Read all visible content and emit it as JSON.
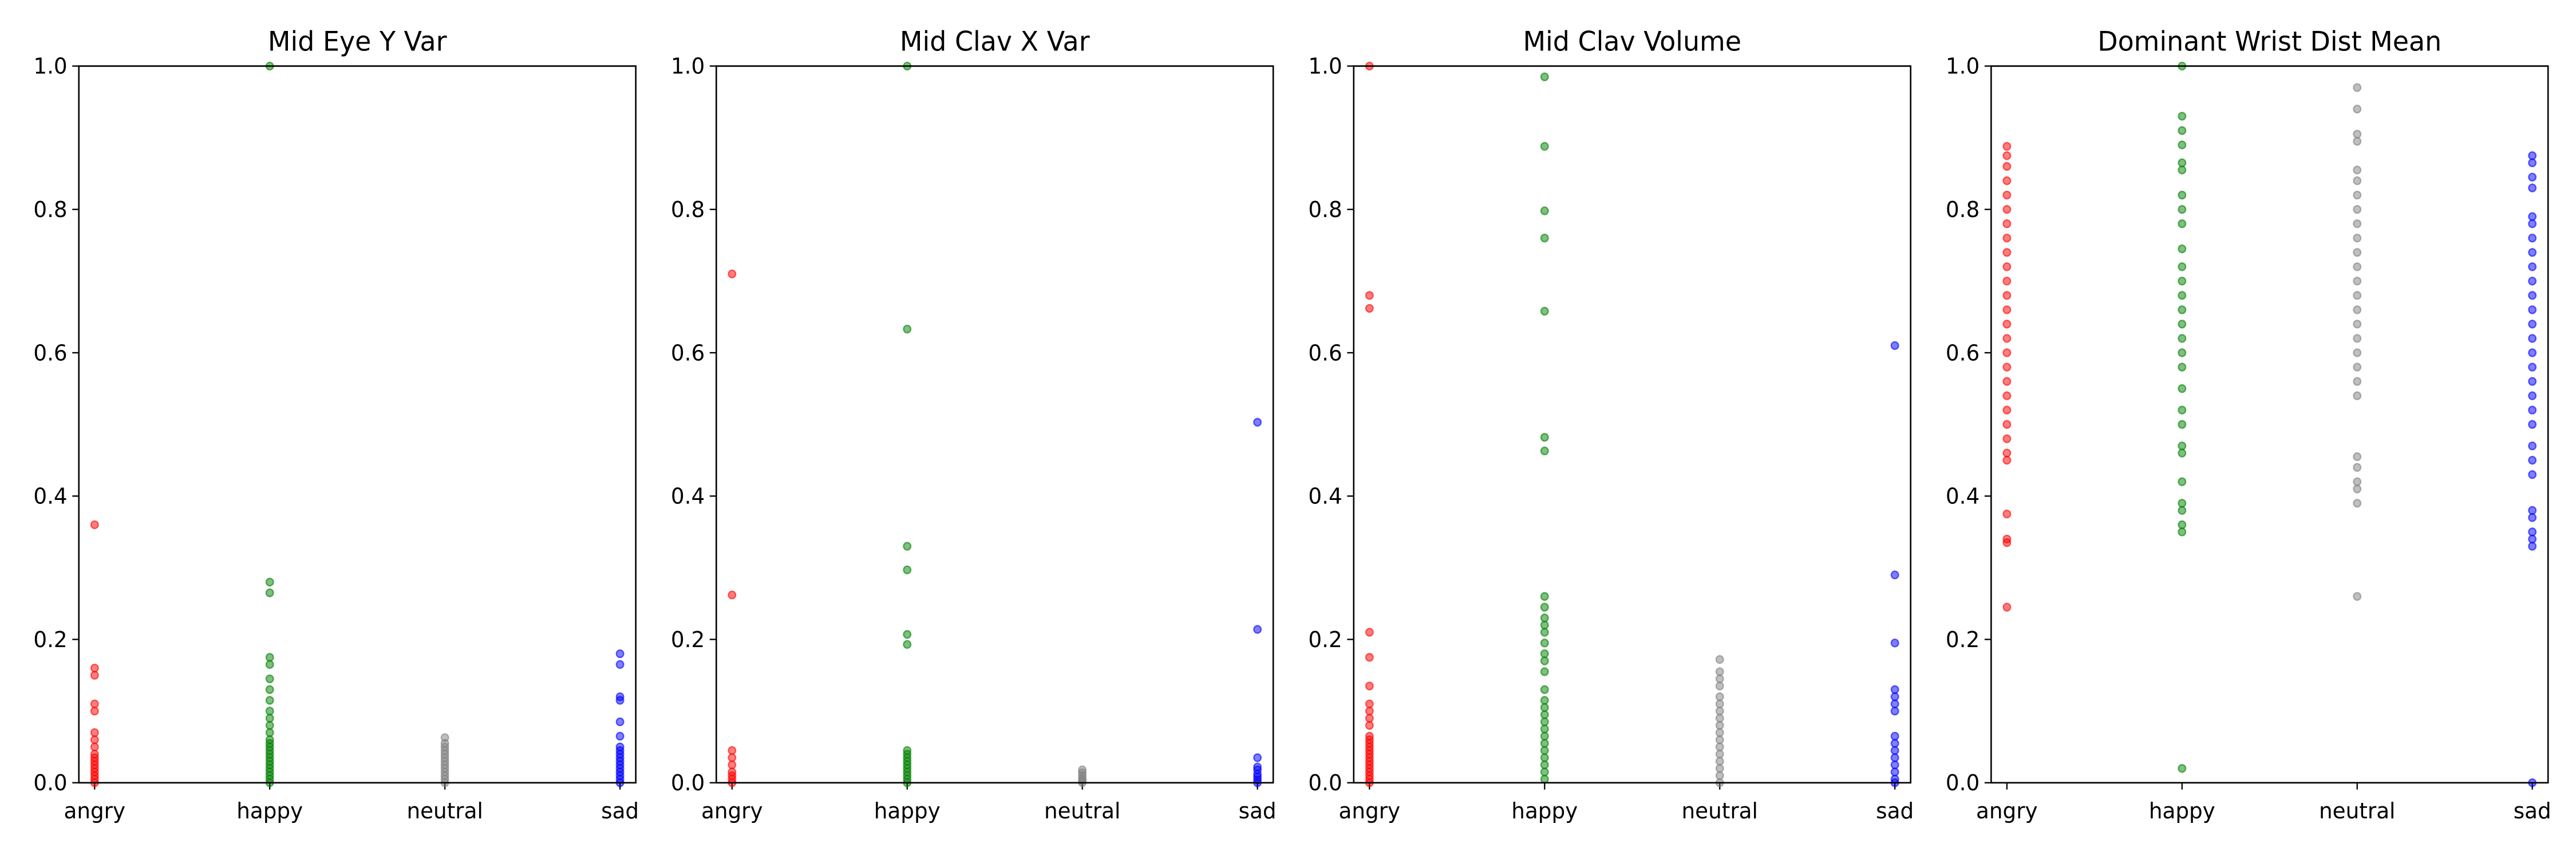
{
  "chart_data": [
    {
      "type": "strip",
      "title": "Mid Eye Y Var",
      "categories": [
        "angry",
        "happy",
        "neutral",
        "sad"
      ],
      "colors": [
        "red",
        "green",
        "gray",
        "blue"
      ],
      "ylim": [
        0,
        1
      ],
      "yticks": [
        {
          "value": 0,
          "label": "0.0"
        },
        0.2,
        0.4,
        0.6,
        0.8,
        {
          "value": 1,
          "label": "1.0"
        }
      ],
      "values": [
        [
          0.36,
          0.16,
          0.15,
          0.11,
          0.1,
          0.07,
          0.06,
          0.05,
          0.04,
          0.035,
          0.03,
          0.025,
          0.02,
          0.015,
          0.01,
          0.005,
          0.0
        ],
        [
          1.0,
          0.28,
          0.265,
          0.175,
          0.165,
          0.145,
          0.13,
          0.115,
          0.1,
          0.09,
          0.08,
          0.07,
          0.06,
          0.055,
          0.05,
          0.045,
          0.04,
          0.035,
          0.03,
          0.025,
          0.02,
          0.015,
          0.01,
          0.005,
          0.0
        ],
        [
          0.063,
          0.055,
          0.05,
          0.045,
          0.04,
          0.035,
          0.03,
          0.025,
          0.02,
          0.015,
          0.01,
          0.005,
          0.0
        ],
        [
          0.18,
          0.165,
          0.12,
          0.115,
          0.085,
          0.065,
          0.05,
          0.045,
          0.04,
          0.035,
          0.03,
          0.025,
          0.02,
          0.015,
          0.01,
          0.005,
          0.0
        ]
      ]
    },
    {
      "type": "strip",
      "title": "Mid Clav X Var",
      "categories": [
        "angry",
        "happy",
        "neutral",
        "sad"
      ],
      "colors": [
        "red",
        "green",
        "gray",
        "blue"
      ],
      "ylim": [
        0,
        1
      ],
      "yticks": [
        {
          "value": 0,
          "label": "0.0"
        },
        0.2,
        0.4,
        0.6,
        0.8,
        {
          "value": 1,
          "label": "1.0"
        }
      ],
      "values": [
        [
          0.71,
          0.262,
          0.045,
          0.035,
          0.025,
          0.015,
          0.01,
          0.005,
          0.0
        ],
        [
          1.0,
          0.633,
          0.33,
          0.297,
          0.207,
          0.193,
          0.045,
          0.04,
          0.035,
          0.03,
          0.025,
          0.02,
          0.015,
          0.01,
          0.005,
          0.0
        ],
        [
          0.018,
          0.014,
          0.01,
          0.006,
          0.003,
          0.0
        ],
        [
          0.503,
          0.214,
          0.035,
          0.022,
          0.018,
          0.012,
          0.008,
          0.004,
          0.0
        ]
      ]
    },
    {
      "type": "strip",
      "title": "Mid Clav Volume",
      "categories": [
        "angry",
        "happy",
        "neutral",
        "sad"
      ],
      "colors": [
        "red",
        "green",
        "gray",
        "blue"
      ],
      "ylim": [
        0,
        1
      ],
      "yticks": [
        {
          "value": 0,
          "label": "0.0"
        },
        0.2,
        0.4,
        0.6,
        0.8,
        {
          "value": 1,
          "label": "1.0"
        }
      ],
      "values": [
        [
          1.0,
          0.68,
          0.662,
          0.21,
          0.175,
          0.135,
          0.11,
          0.1,
          0.09,
          0.08,
          0.065,
          0.06,
          0.055,
          0.05,
          0.045,
          0.04,
          0.035,
          0.03,
          0.025,
          0.02,
          0.015,
          0.01,
          0.005,
          0.0
        ],
        [
          0.985,
          0.888,
          0.798,
          0.76,
          0.658,
          0.482,
          0.463,
          0.26,
          0.245,
          0.23,
          0.22,
          0.21,
          0.195,
          0.18,
          0.17,
          0.155,
          0.13,
          0.115,
          0.105,
          0.095,
          0.085,
          0.075,
          0.065,
          0.055,
          0.045,
          0.035,
          0.025,
          0.015,
          0.005
        ],
        [
          0.172,
          0.155,
          0.145,
          0.135,
          0.12,
          0.11,
          0.1,
          0.09,
          0.08,
          0.07,
          0.06,
          0.05,
          0.04,
          0.03,
          0.02,
          0.01,
          0.0
        ],
        [
          0.61,
          0.29,
          0.195,
          0.13,
          0.12,
          0.11,
          0.1,
          0.065,
          0.055,
          0.045,
          0.035,
          0.025,
          0.015,
          0.005,
          0.0
        ]
      ]
    },
    {
      "type": "strip",
      "title": "Dominant Wrist Dist Mean",
      "categories": [
        "angry",
        "happy",
        "neutral",
        "sad"
      ],
      "colors": [
        "red",
        "green",
        "gray",
        "blue"
      ],
      "ylim": [
        0,
        1
      ],
      "yticks": [
        {
          "value": 0,
          "label": "0.0"
        },
        0.2,
        0.4,
        0.6,
        0.8,
        {
          "value": 1,
          "label": "1.0"
        }
      ],
      "values": [
        [
          0.888,
          0.875,
          0.86,
          0.84,
          0.82,
          0.8,
          0.78,
          0.76,
          0.74,
          0.72,
          0.7,
          0.68,
          0.66,
          0.64,
          0.62,
          0.6,
          0.58,
          0.56,
          0.54,
          0.52,
          0.5,
          0.48,
          0.46,
          0.45,
          0.375,
          0.34,
          0.335,
          0.245
        ],
        [
          1.0,
          0.93,
          0.91,
          0.89,
          0.865,
          0.855,
          0.82,
          0.8,
          0.78,
          0.745,
          0.72,
          0.7,
          0.68,
          0.66,
          0.64,
          0.62,
          0.6,
          0.58,
          0.55,
          0.52,
          0.5,
          0.47,
          0.46,
          0.42,
          0.39,
          0.38,
          0.36,
          0.35,
          0.02
        ],
        [
          0.97,
          0.94,
          0.905,
          0.895,
          0.855,
          0.84,
          0.82,
          0.8,
          0.78,
          0.76,
          0.74,
          0.72,
          0.7,
          0.68,
          0.66,
          0.64,
          0.62,
          0.6,
          0.58,
          0.56,
          0.54,
          0.455,
          0.44,
          0.42,
          0.41,
          0.39,
          0.26
        ],
        [
          0.875,
          0.865,
          0.845,
          0.83,
          0.79,
          0.78,
          0.76,
          0.74,
          0.72,
          0.7,
          0.68,
          0.66,
          0.64,
          0.62,
          0.6,
          0.58,
          0.56,
          0.54,
          0.52,
          0.5,
          0.47,
          0.45,
          0.43,
          0.38,
          0.37,
          0.35,
          0.34,
          0.33,
          0.0
        ]
      ]
    }
  ]
}
